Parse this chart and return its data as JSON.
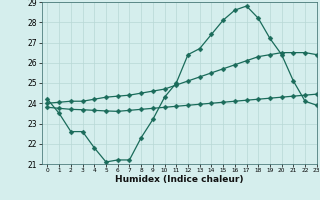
{
  "xlabel": "Humidex (Indice chaleur)",
  "bg_color": "#d5eeed",
  "grid_color": "#b8d8d5",
  "line_color": "#1a6b5a",
  "xlim": [
    -0.5,
    23
  ],
  "ylim": [
    21,
    29
  ],
  "yticks": [
    21,
    22,
    23,
    24,
    25,
    26,
    27,
    28,
    29
  ],
  "xticks": [
    0,
    1,
    2,
    3,
    4,
    5,
    6,
    7,
    8,
    9,
    10,
    11,
    12,
    13,
    14,
    15,
    16,
    17,
    18,
    19,
    20,
    21,
    22,
    23
  ],
  "line1_x": [
    0,
    1,
    2,
    3,
    4,
    5,
    6,
    7,
    8,
    9,
    10,
    11,
    12,
    13,
    14,
    15,
    16,
    17,
    18,
    19,
    20,
    21,
    22,
    23
  ],
  "line1_y": [
    24.2,
    23.5,
    22.6,
    22.6,
    21.8,
    21.1,
    21.2,
    21.2,
    22.3,
    23.2,
    24.3,
    25.0,
    26.4,
    26.7,
    27.4,
    28.1,
    28.6,
    28.8,
    28.2,
    27.2,
    26.4,
    25.1,
    24.1,
    23.9
  ],
  "line2_x": [
    0,
    1,
    2,
    3,
    4,
    5,
    6,
    7,
    8,
    9,
    10,
    11,
    12,
    13,
    14,
    15,
    16,
    17,
    18,
    19,
    20,
    21,
    22,
    23
  ],
  "line2_y": [
    23.8,
    23.75,
    23.7,
    23.68,
    23.65,
    23.62,
    23.6,
    23.65,
    23.7,
    23.75,
    23.8,
    23.85,
    23.9,
    23.95,
    24.0,
    24.05,
    24.1,
    24.15,
    24.2,
    24.25,
    24.3,
    24.35,
    24.4,
    24.45
  ],
  "line3_x": [
    0,
    1,
    2,
    3,
    4,
    5,
    6,
    7,
    8,
    9,
    10,
    11,
    12,
    13,
    14,
    15,
    16,
    17,
    18,
    19,
    20,
    21,
    22,
    23
  ],
  "line3_y": [
    24.0,
    24.05,
    24.1,
    24.1,
    24.2,
    24.3,
    24.35,
    24.4,
    24.5,
    24.6,
    24.7,
    24.9,
    25.1,
    25.3,
    25.5,
    25.7,
    25.9,
    26.1,
    26.3,
    26.4,
    26.5,
    26.5,
    26.5,
    26.4
  ],
  "marker": "D",
  "markersize": 2.5,
  "linewidth": 0.9
}
